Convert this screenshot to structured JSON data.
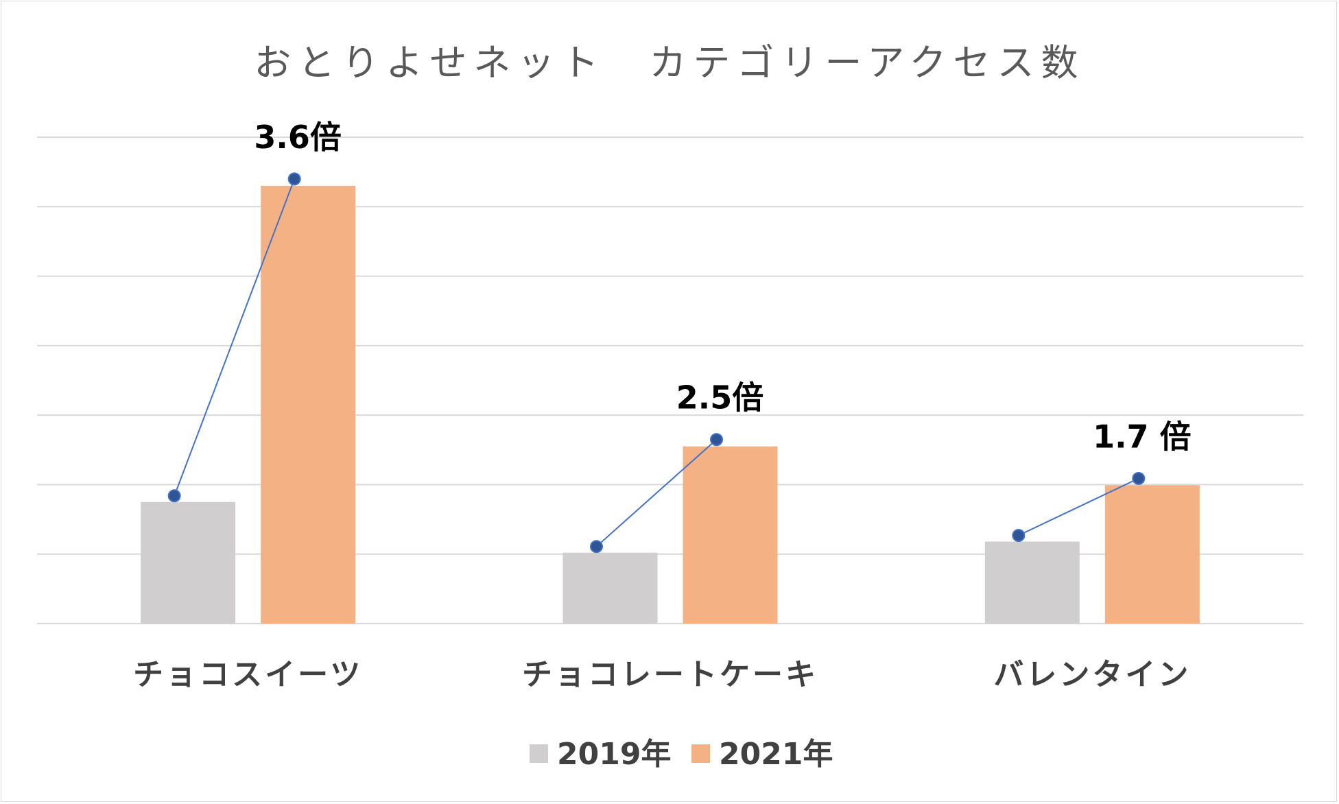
{
  "chart_data": {
    "type": "bar",
    "title": "おとりよせネット　カテゴリーアクセス数",
    "categories": [
      "チョコスイーツ",
      "チョコレートケーキ",
      "バレンタイン"
    ],
    "series": [
      {
        "name": "2019年",
        "values": [
          1.75,
          1.02,
          1.18
        ],
        "color": "#d0cece"
      },
      {
        "name": "2021年",
        "values": [
          6.3,
          2.55,
          1.99
        ],
        "color": "#f4b183"
      }
    ],
    "growth_labels": [
      "3.6倍",
      "2.5倍",
      "1.7 倍"
    ],
    "ylim": [
      0,
      7
    ],
    "grid": true,
    "y_tick_labels_shown": false,
    "legend_position": "bottom",
    "line_color": "#4472c4",
    "marker_color": "#2f5597"
  }
}
